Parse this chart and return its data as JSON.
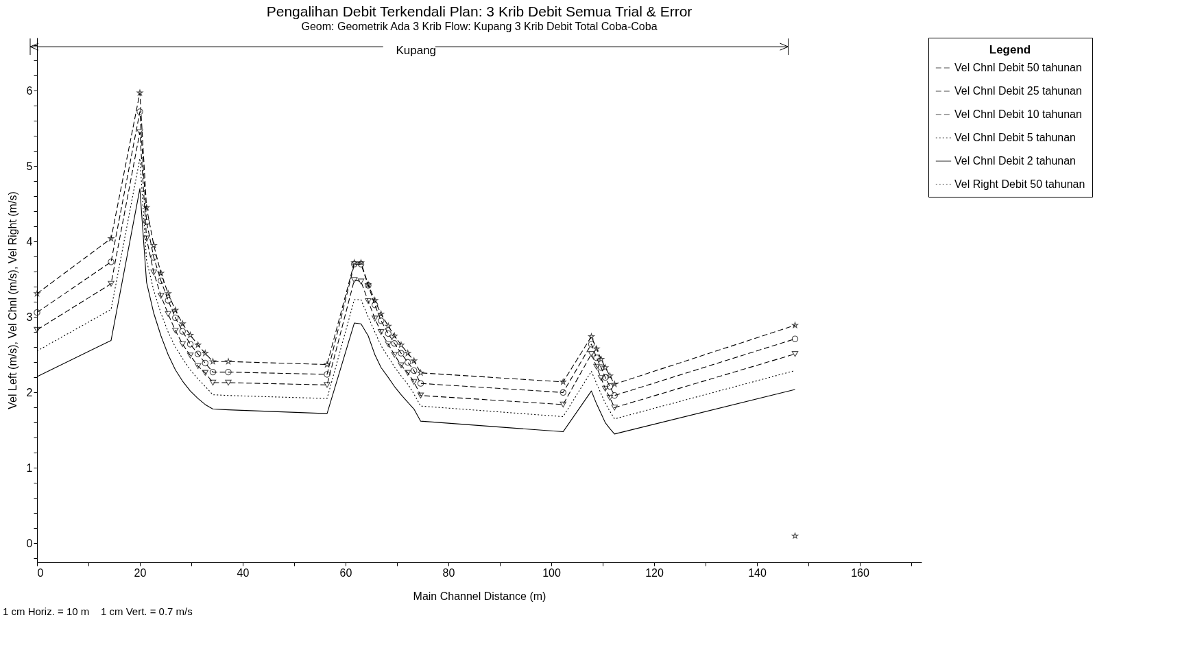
{
  "chart_data": {
    "type": "line",
    "title": "Pengalihan Debit Terkendali      Plan: 3 Krib Debit Semua Trial & Error",
    "subtitle": "Geom: Geometrik Ada 3 Krib    Flow: Kupang 3 Krib Debit Total Coba-Coba",
    "xlabel": "Main Channel Distance (m)",
    "ylabel": "Vel Left (m/s), Vel Chnl (m/s), Vel Right (m/s)",
    "legend_title": "Legend",
    "legend": "right",
    "annotations": [
      "Kupang",
      "1 cm Horiz. = 10 m    1 cm Vert. = 0.7 m/s"
    ],
    "x": [
      0,
      14.4,
      20.0,
      21.3,
      22.7,
      24.1,
      25.5,
      26.9,
      28.3,
      29.8,
      31.3,
      32.7,
      34.2,
      37.2,
      56.4,
      61.7,
      63.0,
      64.4,
      65.7,
      66.9,
      68.3,
      69.5,
      70.8,
      72.1,
      73.3,
      74.6,
      102.3,
      107.8,
      108.8,
      109.7,
      110.5,
      111.4,
      112.3,
      147.4
    ],
    "series": [
      {
        "name": "Vel Chnl Debit 50 tahunan",
        "color": "#000000",
        "marker": "star",
        "line_style": "dashed",
        "values": [
          3.31,
          4.04,
          5.97,
          4.45,
          3.95,
          3.58,
          3.31,
          3.09,
          2.91,
          2.76,
          2.63,
          2.52,
          2.41,
          2.41,
          2.37,
          3.72,
          3.72,
          3.43,
          3.22,
          3.04,
          2.88,
          2.75,
          2.63,
          2.52,
          2.42,
          2.26,
          2.14,
          2.74,
          2.58,
          2.44,
          2.33,
          2.22,
          2.11,
          2.89
        ]
      },
      {
        "name": "Vel Chnl Debit 25 tahunan",
        "color": "#000000",
        "marker": "circle",
        "line_style": "dashed",
        "values": [
          3.06,
          3.73,
          5.72,
          4.26,
          3.79,
          3.48,
          3.22,
          2.99,
          2.81,
          2.64,
          2.51,
          2.39,
          2.27,
          2.27,
          2.24,
          3.7,
          3.7,
          3.42,
          3.16,
          2.95,
          2.78,
          2.65,
          2.52,
          2.4,
          2.29,
          2.12,
          2.0,
          2.64,
          2.46,
          2.33,
          2.2,
          2.08,
          1.96,
          2.71
        ]
      },
      {
        "name": "Vel Chnl Debit 10 tahunan",
        "color": "#000000",
        "marker": "triangle",
        "line_style": "dashed",
        "values": [
          2.83,
          3.44,
          5.45,
          4.04,
          3.59,
          3.28,
          3.04,
          2.82,
          2.64,
          2.49,
          2.35,
          2.26,
          2.13,
          2.13,
          2.1,
          3.49,
          3.47,
          3.21,
          2.98,
          2.8,
          2.64,
          2.5,
          2.36,
          2.26,
          2.14,
          1.96,
          1.84,
          2.51,
          2.34,
          2.19,
          2.05,
          1.93,
          1.8,
          2.51
        ]
      },
      {
        "name": "Vel Chnl Debit 5 tahunan",
        "color": "#000000",
        "marker": "none",
        "line_style": "dotted",
        "values": [
          2.55,
          3.1,
          5.1,
          3.75,
          3.35,
          3.05,
          2.8,
          2.6,
          2.45,
          2.3,
          2.18,
          2.08,
          1.97,
          1.96,
          1.92,
          3.23,
          3.23,
          3.0,
          2.8,
          2.62,
          2.47,
          2.34,
          2.22,
          2.11,
          1.98,
          1.82,
          1.68,
          2.28,
          2.12,
          1.98,
          1.86,
          1.75,
          1.65,
          2.29
        ]
      },
      {
        "name": "Vel Chnl Debit 2 tahunan",
        "color": "#000000",
        "marker": "none",
        "line_style": "solid",
        "values": [
          2.21,
          2.69,
          4.7,
          3.46,
          3.05,
          2.75,
          2.5,
          2.3,
          2.15,
          2.02,
          1.92,
          1.84,
          1.78,
          1.77,
          1.72,
          2.92,
          2.91,
          2.75,
          2.5,
          2.33,
          2.2,
          2.08,
          1.97,
          1.87,
          1.78,
          1.62,
          1.48,
          2.02,
          1.85,
          1.72,
          1.6,
          1.52,
          1.45,
          2.04
        ]
      },
      {
        "name": "Vel Right Debit 50 tahunan",
        "color": "#000000",
        "marker": "star",
        "line_style": "dotted",
        "x": [
          147.4
        ],
        "values": [
          0.1
        ]
      }
    ],
    "xlim": [
      0,
      172
    ],
    "ylim": [
      -0.25,
      6.7
    ],
    "xticks": [
      0,
      {
        "value": 10,
        "label": null
      },
      20,
      {
        "value": 30,
        "label": null
      },
      40,
      {
        "value": 50,
        "label": null
      },
      60,
      {
        "value": 70,
        "label": null
      },
      80,
      {
        "value": 90,
        "label": null
      },
      100,
      {
        "value": 110,
        "label": null
      },
      120,
      {
        "value": 130,
        "label": null
      },
      140,
      {
        "value": 150,
        "label": null
      },
      160,
      {
        "value": 170,
        "label": null
      }
    ],
    "yticks": [
      {
        "value": -0.2,
        "label": null
      },
      0,
      {
        "value": 0.2,
        "label": null
      },
      {
        "value": 0.4,
        "label": null
      },
      {
        "value": 0.6,
        "label": null
      },
      {
        "value": 0.8,
        "label": null
      },
      1,
      {
        "value": 1.2,
        "label": null
      },
      {
        "value": 1.4,
        "label": null
      },
      {
        "value": 1.6,
        "label": null
      },
      {
        "value": 1.8,
        "label": null
      },
      2,
      {
        "value": 2.2,
        "label": null
      },
      {
        "value": 2.4,
        "label": null
      },
      {
        "value": 2.6,
        "label": null
      },
      {
        "value": 2.8,
        "label": null
      },
      3,
      {
        "value": 3.2,
        "label": null
      },
      {
        "value": 3.4,
        "label": null
      },
      {
        "value": 3.6,
        "label": null
      },
      {
        "value": 3.8,
        "label": null
      },
      4,
      {
        "value": 4.2,
        "label": null
      },
      {
        "value": 4.4,
        "label": null
      },
      {
        "value": 4.6,
        "label": null
      },
      {
        "value": 4.8,
        "label": null
      },
      5,
      {
        "value": 5.2,
        "label": null
      },
      {
        "value": 5.4,
        "label": null
      },
      {
        "value": 5.6,
        "label": null
      },
      {
        "value": 5.8,
        "label": null
      },
      6,
      {
        "value": 6.2,
        "label": null
      },
      {
        "value": 6.4,
        "label": null
      },
      {
        "value": 6.6,
        "label": null
      }
    ],
    "grid": false
  }
}
